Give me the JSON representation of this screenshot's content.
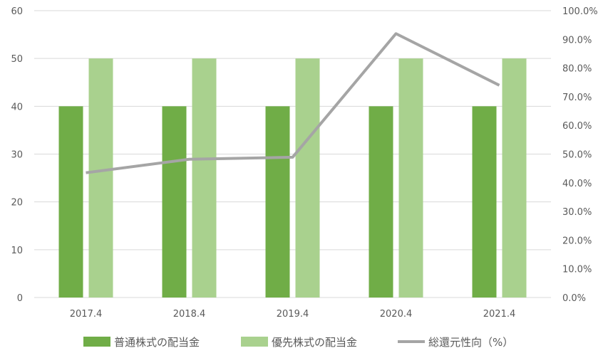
{
  "chart_data": {
    "type": "bar",
    "categories": [
      "2017.4",
      "2018.4",
      "2019.4",
      "2020.4",
      "2021.4"
    ],
    "series": [
      {
        "name": "普通株式の配当金",
        "type": "bar",
        "axis": "left",
        "color": "#70ad47",
        "values": [
          40,
          40,
          40,
          40,
          40
        ]
      },
      {
        "name": "優先株式の配当金",
        "type": "bar",
        "axis": "left",
        "color": "#a9d18e",
        "values": [
          50,
          50,
          50,
          50,
          50
        ]
      },
      {
        "name": "総還元性向（%）",
        "type": "line",
        "axis": "right",
        "color": "#a5a5a5",
        "values": [
          43.5,
          48.2,
          48.9,
          92.0,
          74.0
        ]
      }
    ],
    "y_left": {
      "ylim": [
        0,
        60
      ],
      "ticks": [
        "0",
        "10",
        "20",
        "30",
        "40",
        "50",
        "60"
      ]
    },
    "y_right": {
      "ylim": [
        0,
        100
      ],
      "ticks": [
        "0.0%",
        "10.0%",
        "20.0%",
        "30.0%",
        "40.0%",
        "50.0%",
        "60.0%",
        "70.0%",
        "80.0%",
        "90.0%",
        "100.0%"
      ]
    },
    "grid": true,
    "legend_position": "bottom"
  }
}
